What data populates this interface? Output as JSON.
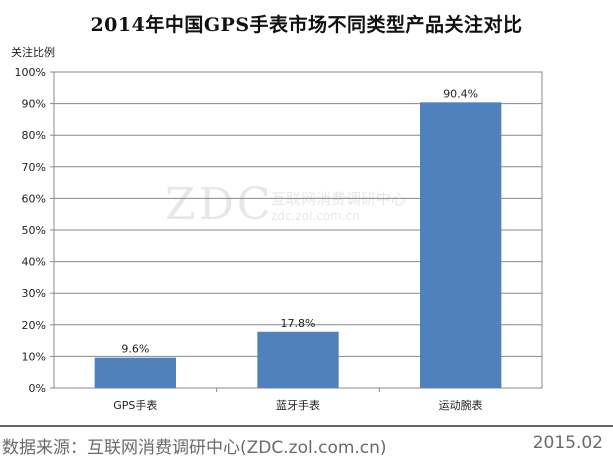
{
  "chart_data": {
    "type": "bar",
    "title": "2014年中国GPS手表市场不同类型产品关注对比",
    "ylabel": "关注比例",
    "xlabel": "",
    "categories": [
      "GPS手表",
      "蓝牙手表",
      "运动腕表"
    ],
    "values": [
      9.6,
      17.8,
      90.4
    ],
    "value_labels": [
      "9.6%",
      "17.8%",
      "90.4%"
    ],
    "ylim": [
      0,
      100
    ],
    "yticks": [
      "0%",
      "10%",
      "20%",
      "30%",
      "40%",
      "50%",
      "60%",
      "70%",
      "80%",
      "90%",
      "100%"
    ],
    "grid": true,
    "legend": "none",
    "bar_color": "#4f81bd"
  },
  "watermark": {
    "logo": "ZDC",
    "name": "互联网消费调研中心",
    "url": "zdc.zol.com.cn"
  },
  "footer": {
    "source": "数据来源：互联网消费调研中心(ZDC.zol.com.cn)",
    "date": "2015.02"
  }
}
